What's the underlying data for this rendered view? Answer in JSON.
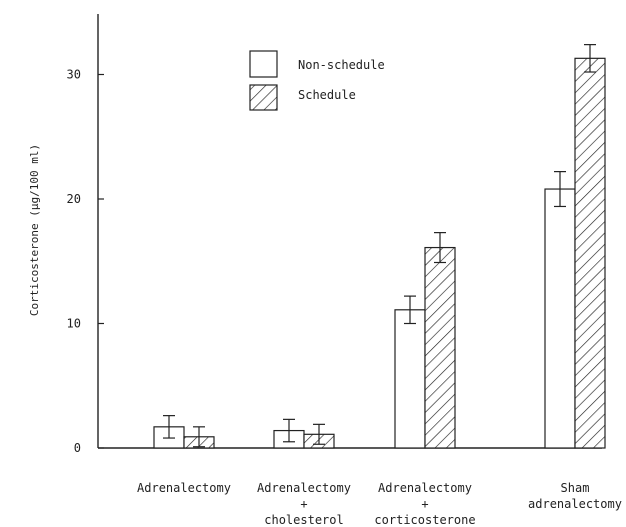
{
  "chart_data": {
    "type": "bar",
    "title": "",
    "xlabel": "",
    "ylabel": "Corticosterone (μg/100 ml)",
    "ylim": [
      0,
      35
    ],
    "yticks": [
      0,
      10,
      20,
      30
    ],
    "categories": [
      [
        "Adrenalectomy"
      ],
      [
        "Adrenalectomy",
        "+",
        "cholesterol"
      ],
      [
        "Adrenalectomy",
        "+",
        "corticosterone"
      ],
      [
        "Sham",
        "adrenalectomy"
      ]
    ],
    "series": [
      {
        "name": "Non-schedule",
        "pattern": "none",
        "values": [
          1.7,
          1.4,
          11.1,
          20.8
        ],
        "errors": [
          0.9,
          0.9,
          1.1,
          1.4
        ]
      },
      {
        "name": "Schedule",
        "pattern": "hatched",
        "values": [
          0.9,
          1.1,
          16.1,
          31.3
        ],
        "errors": [
          0.8,
          0.8,
          1.2,
          1.1
        ]
      }
    ],
    "legend_position": "top-center",
    "grid": false,
    "colors": {
      "bar_fill": "#ffffff",
      "stroke": "#222222"
    }
  }
}
